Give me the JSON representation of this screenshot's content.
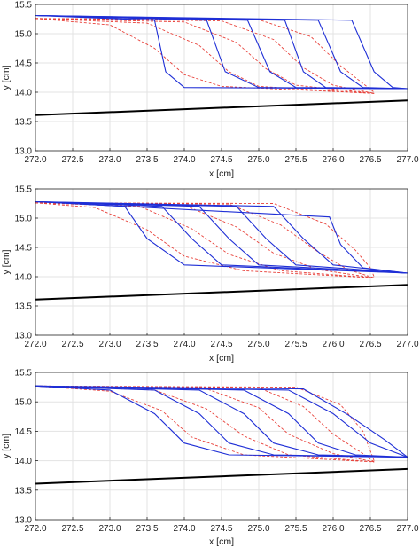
{
  "chart_data": [
    {
      "type": "line",
      "xlabel": "x [cm]",
      "ylabel": "y [cm]",
      "xlim": [
        272.0,
        277.0
      ],
      "ylim": [
        13.0,
        15.5
      ],
      "xticks": [
        "272.0",
        "272.5",
        "273.0",
        "273.5",
        "274.0",
        "274.5",
        "275.0",
        "275.5",
        "276.0",
        "276.5",
        "277.0"
      ],
      "yticks": [
        "13.0",
        "13.5",
        "14.0",
        "14.5",
        "15.0",
        "15.5"
      ],
      "grid": true,
      "colors": {
        "blue": "#1f2fd6",
        "red": "#e8413a",
        "bed": "#000000"
      },
      "bed": {
        "x": [
          272.0,
          277.0
        ],
        "y": [
          13.61,
          13.86
        ]
      },
      "blue_series": [
        {
          "x": [
            272.0,
            273.6,
            273.75,
            274.0,
            277.0
          ],
          "y": [
            15.31,
            15.23,
            14.35,
            14.08,
            14.06
          ]
        },
        {
          "x": [
            272.0,
            274.3,
            274.55,
            275.0,
            277.0
          ],
          "y": [
            15.31,
            15.23,
            14.35,
            14.08,
            14.06
          ]
        },
        {
          "x": [
            272.0,
            274.85,
            275.15,
            275.5,
            277.0
          ],
          "y": [
            15.31,
            15.23,
            14.35,
            14.08,
            14.06
          ]
        },
        {
          "x": [
            272.0,
            275.35,
            275.6,
            275.9,
            277.0
          ],
          "y": [
            15.31,
            15.23,
            14.35,
            14.08,
            14.06
          ]
        },
        {
          "x": [
            272.0,
            275.8,
            276.1,
            276.4,
            277.0
          ],
          "y": [
            15.31,
            15.23,
            14.35,
            14.08,
            14.06
          ]
        },
        {
          "x": [
            272.0,
            276.25,
            276.55,
            276.8,
            277.0
          ],
          "y": [
            15.31,
            15.23,
            14.35,
            14.08,
            14.06
          ]
        }
      ],
      "red_series": [
        {
          "x": [
            272.0,
            273.0,
            273.6,
            274.0,
            274.5,
            276.55
          ],
          "y": [
            15.26,
            15.15,
            14.75,
            14.3,
            14.1,
            13.98
          ]
        },
        {
          "x": [
            272.0,
            273.5,
            274.2,
            274.6,
            275.0,
            276.55
          ],
          "y": [
            15.26,
            15.18,
            14.8,
            14.35,
            14.1,
            13.98
          ]
        },
        {
          "x": [
            272.0,
            274.0,
            274.7,
            275.1,
            275.5,
            276.55
          ],
          "y": [
            15.26,
            15.2,
            14.85,
            14.4,
            14.12,
            13.98
          ]
        },
        {
          "x": [
            272.0,
            274.5,
            275.2,
            275.6,
            276.0,
            276.55
          ],
          "y": [
            15.26,
            15.22,
            14.9,
            14.42,
            14.12,
            13.98
          ]
        },
        {
          "x": [
            272.0,
            275.0,
            275.7,
            276.1,
            276.4,
            276.55
          ],
          "y": [
            15.26,
            15.24,
            14.95,
            14.45,
            14.15,
            14.0
          ]
        }
      ]
    },
    {
      "type": "line",
      "xlabel": "x [cm]",
      "ylabel": "y [cm]",
      "xlim": [
        272.0,
        277.0
      ],
      "ylim": [
        13.0,
        15.5
      ],
      "xticks": [
        "272.0",
        "272.5",
        "273.0",
        "273.5",
        "274.0",
        "274.5",
        "275.0",
        "275.5",
        "276.0",
        "276.5",
        "277.0"
      ],
      "yticks": [
        "13.0",
        "13.5",
        "14.0",
        "14.5",
        "15.0",
        "15.5"
      ],
      "grid": true,
      "colors": {
        "blue": "#1f2fd6",
        "red": "#e8413a",
        "bed": "#000000"
      },
      "bed": {
        "x": [
          272.0,
          277.0
        ],
        "y": [
          13.61,
          13.86
        ]
      },
      "blue_series": [
        {
          "x": [
            272.0,
            273.2,
            273.5,
            274.0,
            277.0
          ],
          "y": [
            15.28,
            15.2,
            14.65,
            14.2,
            14.06
          ]
        },
        {
          "x": [
            272.0,
            273.7,
            274.1,
            274.5,
            277.0
          ],
          "y": [
            15.28,
            15.2,
            14.65,
            14.2,
            14.06
          ]
        },
        {
          "x": [
            272.0,
            274.2,
            274.6,
            275.0,
            277.0
          ],
          "y": [
            15.28,
            15.2,
            14.65,
            14.2,
            14.06
          ]
        },
        {
          "x": [
            272.0,
            274.7,
            275.1,
            275.5,
            277.0
          ],
          "y": [
            15.28,
            15.2,
            14.65,
            14.2,
            14.06
          ]
        },
        {
          "x": [
            272.0,
            275.2,
            275.6,
            276.0,
            277.0
          ],
          "y": [
            15.28,
            15.2,
            14.65,
            14.2,
            14.06
          ]
        },
        {
          "x": [
            272.0,
            275.95,
            276.1,
            276.4,
            277.0
          ],
          "y": [
            15.28,
            15.02,
            14.55,
            14.15,
            14.06
          ]
        }
      ],
      "red_series": [
        {
          "x": [
            272.0,
            272.8,
            273.5,
            274.0,
            274.8,
            276.55
          ],
          "y": [
            15.26,
            15.18,
            14.8,
            14.35,
            14.1,
            13.98
          ]
        },
        {
          "x": [
            272.0,
            273.4,
            274.1,
            274.6,
            275.3,
            276.55
          ],
          "y": [
            15.26,
            15.2,
            14.82,
            14.38,
            14.1,
            13.98
          ]
        },
        {
          "x": [
            272.0,
            274.0,
            274.7,
            275.2,
            275.8,
            276.55
          ],
          "y": [
            15.26,
            15.22,
            14.85,
            14.4,
            14.12,
            13.98
          ]
        },
        {
          "x": [
            272.0,
            274.6,
            275.3,
            275.8,
            276.2,
            276.55
          ],
          "y": [
            15.26,
            15.24,
            14.88,
            14.42,
            14.12,
            13.98
          ]
        },
        {
          "x": [
            272.0,
            275.2,
            275.9,
            276.3,
            276.5,
            276.55
          ],
          "y": [
            15.26,
            15.25,
            14.9,
            14.45,
            14.15,
            14.0
          ]
        }
      ]
    },
    {
      "type": "line",
      "xlabel": "x [cm]",
      "ylabel": "y [cm]",
      "xlim": [
        272.0,
        277.0
      ],
      "ylim": [
        13.0,
        15.5
      ],
      "xticks": [
        "272.0",
        "272.5",
        "273.0",
        "273.5",
        "274.0",
        "274.5",
        "275.0",
        "275.5",
        "276.0",
        "276.5",
        "277.0"
      ],
      "yticks": [
        "13.0",
        "13.5",
        "14.0",
        "14.5",
        "15.0",
        "15.5"
      ],
      "grid": true,
      "colors": {
        "blue": "#1f2fd6",
        "red": "#e8413a",
        "bed": "#000000"
      },
      "bed": {
        "x": [
          272.0,
          277.0
        ],
        "y": [
          13.61,
          13.86
        ]
      },
      "blue_series": [
        {
          "x": [
            272.0,
            273.0,
            273.6,
            274.0,
            274.6,
            277.0
          ],
          "y": [
            15.27,
            15.2,
            14.8,
            14.3,
            14.1,
            14.06
          ]
        },
        {
          "x": [
            272.0,
            273.6,
            274.2,
            274.6,
            275.2,
            277.0
          ],
          "y": [
            15.27,
            15.2,
            14.8,
            14.3,
            14.1,
            14.06
          ]
        },
        {
          "x": [
            272.0,
            274.2,
            274.8,
            275.2,
            275.8,
            277.0
          ],
          "y": [
            15.27,
            15.2,
            14.8,
            14.3,
            14.1,
            14.06
          ]
        },
        {
          "x": [
            272.0,
            274.8,
            275.4,
            275.8,
            276.3,
            277.0
          ],
          "y": [
            15.27,
            15.2,
            14.8,
            14.3,
            14.1,
            14.06
          ]
        },
        {
          "x": [
            272.0,
            275.4,
            276.0,
            276.5,
            277.0
          ],
          "y": [
            15.27,
            15.2,
            14.8,
            14.3,
            14.06
          ]
        },
        {
          "x": [
            272.0,
            275.6,
            276.2,
            276.7,
            277.0
          ],
          "y": [
            15.27,
            15.22,
            14.78,
            14.35,
            14.06
          ]
        }
      ],
      "red_series": [
        {
          "x": [
            272.0,
            273.0,
            273.7,
            274.1,
            274.8,
            276.55
          ],
          "y": [
            15.27,
            15.18,
            14.85,
            14.4,
            14.1,
            13.98
          ]
        },
        {
          "x": [
            272.0,
            273.6,
            274.3,
            274.8,
            275.4,
            276.55
          ],
          "y": [
            15.27,
            15.2,
            14.88,
            14.42,
            14.1,
            13.98
          ]
        },
        {
          "x": [
            272.0,
            274.3,
            275.0,
            275.4,
            276.0,
            276.55
          ],
          "y": [
            15.27,
            15.22,
            14.9,
            14.45,
            14.12,
            13.98
          ]
        },
        {
          "x": [
            272.0,
            275.0,
            275.6,
            276.0,
            276.4,
            276.55
          ],
          "y": [
            15.27,
            15.24,
            14.92,
            14.45,
            14.12,
            13.98
          ]
        },
        {
          "x": [
            272.0,
            275.5,
            276.1,
            276.4,
            276.55
          ],
          "y": [
            15.27,
            15.25,
            14.95,
            14.5,
            14.0
          ]
        }
      ]
    }
  ]
}
